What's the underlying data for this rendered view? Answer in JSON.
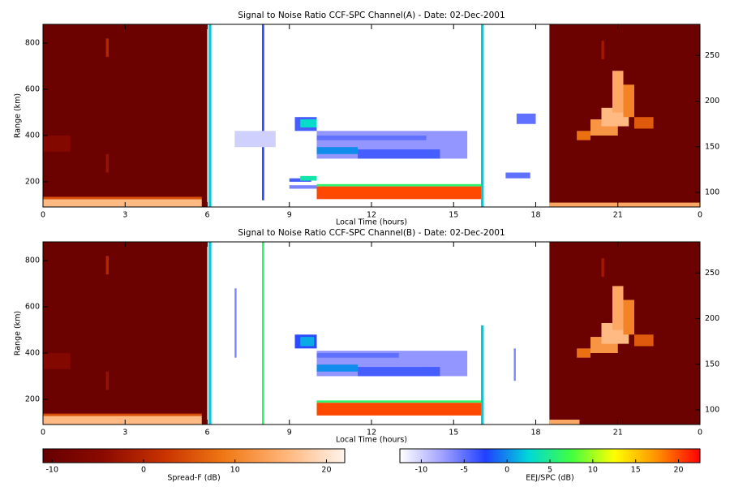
{
  "chart_data": [
    {
      "type": "heatmap",
      "title": "Signal to Noise Ratio CCF-SPC Channel(A) - Date: 02-Dec-2001",
      "x_label": "Local Time (hours)",
      "y_label": "Range (km)",
      "xlim": [
        0,
        24
      ],
      "xticks": [
        0,
        3,
        6,
        9,
        12,
        15,
        18,
        21,
        {
          "value": 24,
          "label": "0"
        }
      ],
      "ylim": [
        91,
        881
      ],
      "yticks": [
        200,
        400,
        600,
        800
      ],
      "y2lim": [
        84,
        284
      ],
      "y2ticks": [
        100,
        150,
        200,
        250
      ],
      "spread_f_echoes": [
        [
          0,
          6,
          91,
          881,
          -10
        ],
        [
          0,
          5.8,
          91,
          125,
          16
        ],
        [
          0,
          5.8,
          125,
          135,
          5
        ],
        [
          2.3,
          2.4,
          740,
          820,
          0
        ],
        [
          2.3,
          2.4,
          240,
          320,
          -3
        ],
        [
          0,
          1,
          330,
          400,
          -6
        ],
        [
          18.5,
          24,
          91,
          881,
          -10
        ],
        [
          18.5,
          24,
          91,
          110,
          14
        ],
        [
          19.5,
          20,
          380,
          420,
          8
        ],
        [
          20,
          21,
          400,
          470,
          12
        ],
        [
          20.4,
          21.4,
          440,
          520,
          16
        ],
        [
          20.8,
          21.2,
          500,
          680,
          14
        ],
        [
          21.2,
          21.6,
          480,
          620,
          10
        ],
        [
          21.6,
          22.3,
          430,
          480,
          6
        ],
        [
          20.4,
          20.5,
          730,
          810,
          -2
        ]
      ],
      "eej_echoes": [
        [
          6.05,
          6.15,
          91,
          881,
          2
        ],
        [
          8,
          8.08,
          120,
          881,
          -3
        ],
        [
          16,
          16.1,
          91,
          881,
          2
        ],
        [
          7,
          8.5,
          350,
          420,
          -10
        ],
        [
          9.2,
          10,
          420,
          480,
          -4
        ],
        [
          9.4,
          10,
          435,
          470,
          3
        ],
        [
          9,
          9.8,
          200,
          215,
          -4
        ],
        [
          9.4,
          10,
          205,
          225,
          4
        ],
        [
          9,
          10,
          170,
          185,
          -6
        ],
        [
          10,
          15.5,
          300,
          420,
          -7
        ],
        [
          11.5,
          14.5,
          300,
          340,
          -4
        ],
        [
          10,
          11.5,
          320,
          350,
          0
        ],
        [
          10,
          14,
          380,
          400,
          -5
        ],
        [
          10,
          16,
          180,
          190,
          6
        ],
        [
          10,
          16,
          125,
          180,
          20
        ],
        [
          16.9,
          17.8,
          215,
          240,
          -5
        ],
        [
          17.3,
          18,
          450,
          495,
          -5
        ]
      ]
    },
    {
      "type": "heatmap",
      "title": "Signal to Noise Ratio CCF-SPC Channel(B) - Date: 02-Dec-2001",
      "x_label": "Local Time (hours)",
      "y_label": "Range (km)",
      "xlim": [
        0,
        24
      ],
      "xticks": [
        0,
        3,
        6,
        9,
        12,
        15,
        18,
        21,
        {
          "value": 24,
          "label": "0"
        }
      ],
      "ylim": [
        91,
        881
      ],
      "yticks": [
        200,
        400,
        600,
        800
      ],
      "y2lim": [
        84,
        284
      ],
      "y2ticks": [
        100,
        150,
        200,
        250
      ],
      "spread_f_echoes": [
        [
          0,
          6,
          91,
          881,
          -10
        ],
        [
          0,
          5.8,
          91,
          128,
          16
        ],
        [
          0,
          5.8,
          128,
          138,
          5
        ],
        [
          2.3,
          2.4,
          740,
          820,
          0
        ],
        [
          2.3,
          2.4,
          240,
          320,
          -3
        ],
        [
          0,
          1,
          330,
          400,
          -6
        ],
        [
          18.5,
          24,
          91,
          881,
          -10
        ],
        [
          18.5,
          19.6,
          91,
          112,
          14
        ],
        [
          19.5,
          20,
          380,
          420,
          8
        ],
        [
          20,
          21,
          400,
          470,
          12
        ],
        [
          20.4,
          21.4,
          440,
          530,
          16
        ],
        [
          20.8,
          21.2,
          500,
          690,
          14
        ],
        [
          21.2,
          21.6,
          480,
          630,
          10
        ],
        [
          21.6,
          22.3,
          430,
          480,
          6
        ],
        [
          20.4,
          20.5,
          730,
          810,
          -2
        ]
      ],
      "eej_echoes": [
        [
          6.05,
          6.15,
          91,
          881,
          2
        ],
        [
          7,
          7.07,
          380,
          680,
          -6
        ],
        [
          8,
          8.08,
          91,
          881,
          6
        ],
        [
          16,
          16.1,
          91,
          520,
          2
        ],
        [
          17.2,
          17.27,
          280,
          420,
          -6
        ],
        [
          9.2,
          10,
          420,
          480,
          -3
        ],
        [
          9.4,
          9.9,
          430,
          470,
          1
        ],
        [
          10,
          15.5,
          300,
          410,
          -7
        ],
        [
          11.5,
          14.5,
          300,
          340,
          -4
        ],
        [
          10,
          11.5,
          320,
          350,
          0
        ],
        [
          10,
          13,
          380,
          400,
          -5
        ],
        [
          10,
          16,
          185,
          195,
          6
        ],
        [
          10,
          16,
          130,
          185,
          20
        ]
      ]
    },
    {
      "type": "colorbar",
      "label": "Spread-F (dB)",
      "echoes": "spread_f_echoes",
      "lim": [
        -11,
        22
      ],
      "ticks": [
        -10,
        0,
        10,
        20
      ],
      "colors": [
        "#660000",
        "#8b0a00",
        "#c83200",
        "#f07814",
        "#ffb478",
        "#fff4ec"
      ]
    },
    {
      "type": "colorbar",
      "label": "EEJ/SPC (dB)",
      "echoes": "eej_echoes",
      "lim": [
        -12.5,
        22.5
      ],
      "ticks": [
        -10,
        -5,
        0,
        5,
        10,
        15,
        20
      ],
      "colors": [
        "#ffffff",
        "#a0a0ff",
        "#2040ff",
        "#00d8d8",
        "#40ff40",
        "#ffff00",
        "#ff9000",
        "#ff0000"
      ]
    }
  ]
}
